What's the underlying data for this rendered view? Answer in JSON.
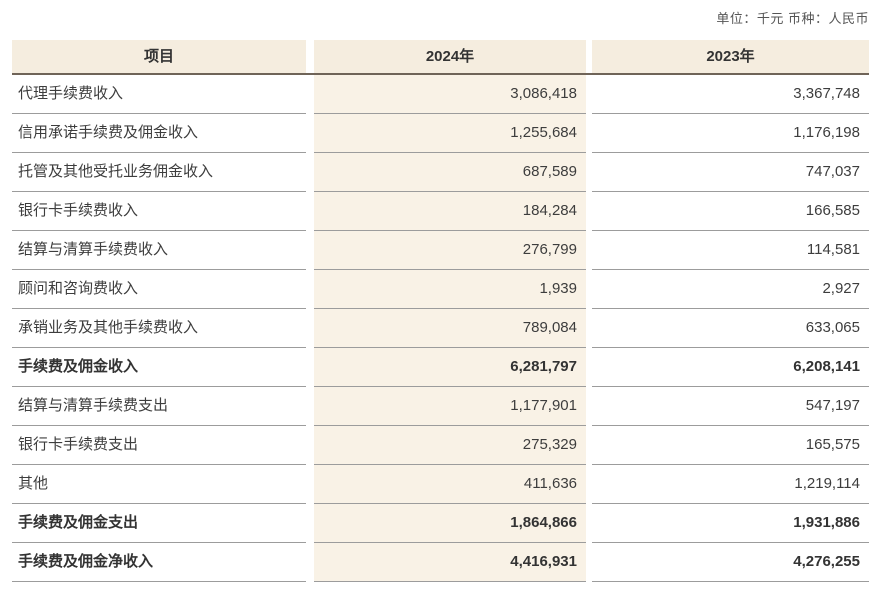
{
  "meta": {
    "unit_label": "单位：千元  币种：人民币"
  },
  "colors": {
    "header_bg": "#f5eddf",
    "col2_bg": "#f9f2e6",
    "header_rule": "#6f6458",
    "row_rule": "#9c9c9c",
    "text": "#3d3d3d"
  },
  "table": {
    "columns": [
      "项目",
      "2024年",
      "2023年"
    ],
    "rows": [
      {
        "label": "代理手续费收入",
        "v2024": "3,086,418",
        "v2023": "3,367,748",
        "bold": false
      },
      {
        "label": "信用承诺手续费及佣金收入",
        "v2024": "1,255,684",
        "v2023": "1,176,198",
        "bold": false
      },
      {
        "label": "托管及其他受托业务佣金收入",
        "v2024": "687,589",
        "v2023": "747,037",
        "bold": false
      },
      {
        "label": "银行卡手续费收入",
        "v2024": "184,284",
        "v2023": "166,585",
        "bold": false
      },
      {
        "label": "结算与清算手续费收入",
        "v2024": "276,799",
        "v2023": "114,581",
        "bold": false
      },
      {
        "label": "顾问和咨询费收入",
        "v2024": "1,939",
        "v2023": "2,927",
        "bold": false
      },
      {
        "label": "承销业务及其他手续费收入",
        "v2024": "789,084",
        "v2023": "633,065",
        "bold": false
      },
      {
        "label": "手续费及佣金收入",
        "v2024": "6,281,797",
        "v2023": "6,208,141",
        "bold": true
      },
      {
        "label": "结算与清算手续费支出",
        "v2024": "1,177,901",
        "v2023": "547,197",
        "bold": false
      },
      {
        "label": "银行卡手续费支出",
        "v2024": "275,329",
        "v2023": "165,575",
        "bold": false
      },
      {
        "label": "其他",
        "v2024": "411,636",
        "v2023": "1,219,114",
        "bold": false
      },
      {
        "label": "手续费及佣金支出",
        "v2024": "1,864,866",
        "v2023": "1,931,886",
        "bold": true
      },
      {
        "label": "手续费及佣金净收入",
        "v2024": "4,416,931",
        "v2023": "4,276,255",
        "bold": true
      }
    ]
  }
}
